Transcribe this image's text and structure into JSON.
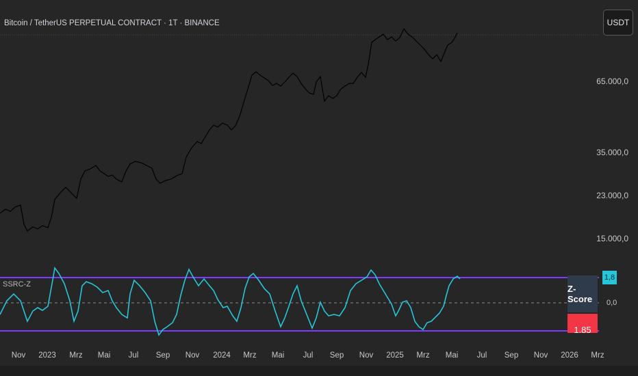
{
  "header": {
    "symbol_title": "Bitcoin / TetherUS PERPETUAL CONTRACT · 1T · BINANCE",
    "currency_button": "USDT"
  },
  "price_axis": {
    "labels": [
      "65.000,0",
      "35.000,0",
      "23.000,0",
      "15.000,0"
    ]
  },
  "indicator": {
    "name": "SSRC-Z",
    "badge_label": "Z-Score",
    "badge_value": "1,85",
    "axis_value_current": "1,8",
    "axis_zero": "0,0"
  },
  "time_axis": {
    "labels": [
      "Nov",
      "2023",
      "Mrz",
      "Mai",
      "Jul",
      "Sep",
      "Nov",
      "2024",
      "Mrz",
      "Mai",
      "Jul",
      "Sep",
      "Nov",
      "2025",
      "Mrz",
      "Mai",
      "Jul",
      "Sep",
      "Nov",
      "2026",
      "Mrz"
    ]
  },
  "colors": {
    "background": "#262626",
    "price_line": "#000000",
    "indicator_line": "#26c6da",
    "band_line": "#7e3bff",
    "zscore_badge": "#2f3a4a",
    "negative_badge": "#f23645"
  }
}
